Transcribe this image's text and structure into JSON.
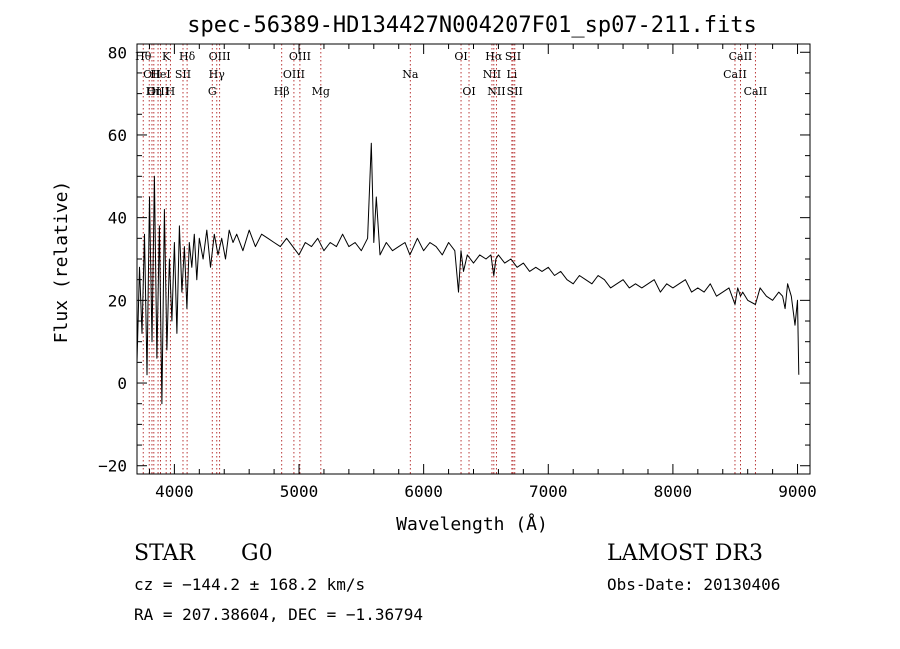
{
  "chart_data": {
    "type": "line",
    "title": "spec-56389-HD134427N004207F01_sp07-211.fits",
    "xlabel": "Wavelength (Å)",
    "ylabel": "Flux (relative)",
    "xlim": [
      3700,
      9100
    ],
    "ylim": [
      -22,
      82
    ],
    "x_ticks": [
      {
        "value": 4000,
        "label": "4000"
      },
      {
        "value": 5000,
        "label": "5000"
      },
      {
        "value": 6000,
        "label": "6000"
      },
      {
        "value": 7000,
        "label": "7000"
      },
      {
        "value": 8000,
        "label": "8000"
      },
      {
        "value": 9000,
        "label": "9000"
      }
    ],
    "x_minor_step": 200,
    "y_ticks": [
      {
        "value": -20,
        "label": "−20"
      },
      {
        "value": 0,
        "label": "0"
      },
      {
        "value": 20,
        "label": "20"
      },
      {
        "value": 40,
        "label": "40"
      },
      {
        "value": 60,
        "label": "60"
      },
      {
        "value": 80,
        "label": "80"
      }
    ],
    "y_minor_step": 5,
    "series": [
      {
        "name": "flux",
        "x": [
          3700,
          3720,
          3740,
          3760,
          3780,
          3800,
          3820,
          3840,
          3860,
          3880,
          3900,
          3920,
          3940,
          3960,
          3980,
          4000,
          4020,
          4040,
          4060,
          4080,
          4100,
          4120,
          4140,
          4160,
          4180,
          4200,
          4230,
          4260,
          4290,
          4320,
          4350,
          4380,
          4410,
          4440,
          4470,
          4500,
          4550,
          4600,
          4650,
          4700,
          4750,
          4800,
          4850,
          4900,
          4950,
          5000,
          5050,
          5100,
          5150,
          5200,
          5250,
          5300,
          5350,
          5400,
          5450,
          5500,
          5550,
          5580,
          5600,
          5620,
          5650,
          5700,
          5750,
          5800,
          5850,
          5890,
          5920,
          5950,
          6000,
          6050,
          6100,
          6150,
          6200,
          6250,
          6280,
          6300,
          6320,
          6350,
          6400,
          6450,
          6500,
          6540,
          6563,
          6580,
          6600,
          6650,
          6700,
          6750,
          6800,
          6850,
          6900,
          6950,
          7000,
          7050,
          7100,
          7150,
          7200,
          7250,
          7300,
          7350,
          7400,
          7450,
          7500,
          7550,
          7600,
          7650,
          7700,
          7750,
          7800,
          7850,
          7900,
          7950,
          8000,
          8050,
          8100,
          8150,
          8200,
          8250,
          8300,
          8350,
          8400,
          8450,
          8498,
          8520,
          8542,
          8560,
          8600,
          8662,
          8700,
          8750,
          8800,
          8850,
          8880,
          8900,
          8920,
          8950,
          8980,
          9000,
          9010
        ],
        "y": [
          5,
          28,
          12,
          36,
          2,
          45,
          10,
          50,
          6,
          38,
          -5,
          42,
          8,
          30,
          15,
          34,
          12,
          38,
          22,
          33,
          18,
          34,
          28,
          36,
          25,
          35,
          30,
          37,
          28,
          36,
          31,
          35,
          30,
          37,
          34,
          36,
          32,
          37,
          33,
          36,
          35,
          34,
          33,
          35,
          33,
          31,
          34,
          33,
          35,
          32,
          34,
          33,
          36,
          33,
          34,
          32,
          35,
          58,
          34,
          45,
          31,
          34,
          32,
          33,
          34,
          31,
          33,
          35,
          32,
          34,
          33,
          31,
          34,
          32,
          22,
          32,
          27,
          31,
          29,
          31,
          30,
          31,
          26,
          30,
          31,
          29,
          30,
          28,
          29,
          27,
          28,
          27,
          28,
          26,
          27,
          25,
          24,
          26,
          25,
          24,
          26,
          25,
          23,
          24,
          25,
          23,
          24,
          23,
          24,
          25,
          22,
          24,
          23,
          24,
          25,
          22,
          23,
          22,
          24,
          21,
          22,
          23,
          19,
          23,
          21,
          22,
          20,
          19,
          23,
          21,
          20,
          22,
          21,
          18,
          24,
          21,
          14,
          20,
          2
        ]
      }
    ],
    "lines": [
      {
        "wl": 3750,
        "label": "Hθ",
        "row": 0
      },
      {
        "wl": 3798,
        "label": "",
        "row": 0
      },
      {
        "wl": 3820,
        "label": "OII",
        "row": 1
      },
      {
        "wl": 3835,
        "label": "Hη",
        "row": 2
      },
      {
        "wl": 3869,
        "label": "OIII",
        "row": 2
      },
      {
        "wl": 3889,
        "label": "HeI",
        "row": 1
      },
      {
        "wl": 3934,
        "label": "K",
        "row": 0
      },
      {
        "wl": 3968,
        "label": "H",
        "row": 2
      },
      {
        "wl": 4069,
        "label": "SII",
        "row": 1
      },
      {
        "wl": 4102,
        "label": "Hδ",
        "row": 0
      },
      {
        "wl": 4304,
        "label": "G",
        "row": 2
      },
      {
        "wl": 4340,
        "label": "Hγ",
        "row": 1
      },
      {
        "wl": 4363,
        "label": "OIII",
        "row": 0
      },
      {
        "wl": 4861,
        "label": "Hβ",
        "row": 2
      },
      {
        "wl": 4959,
        "label": "OIII",
        "row": 1
      },
      {
        "wl": 5007,
        "label": "OIII",
        "row": 0
      },
      {
        "wl": 5175,
        "label": "Mg",
        "row": 2
      },
      {
        "wl": 5893,
        "label": "Na",
        "row": 1
      },
      {
        "wl": 6300,
        "label": "OI",
        "row": 0
      },
      {
        "wl": 6364,
        "label": "OI",
        "row": 2
      },
      {
        "wl": 6548,
        "label": "NII",
        "row": 1
      },
      {
        "wl": 6563,
        "label": "Hα",
        "row": 0
      },
      {
        "wl": 6584,
        "label": "NII",
        "row": 2
      },
      {
        "wl": 6708,
        "label": "Li",
        "row": 1
      },
      {
        "wl": 6717,
        "label": "SII",
        "row": 0
      },
      {
        "wl": 6731,
        "label": "SII",
        "row": 2
      },
      {
        "wl": 8498,
        "label": "CaII",
        "row": 1
      },
      {
        "wl": 8542,
        "label": "CaII",
        "row": 0
      },
      {
        "wl": 8662,
        "label": "CaII",
        "row": 2
      }
    ]
  },
  "info": {
    "object_class": "STAR",
    "subclass": "G0",
    "redshift": "cz = −144.2 ± 168.2 km/s",
    "coords": "RA = 207.38604, DEC =  −1.36794",
    "survey": "LAMOST DR3",
    "obs_date": "Obs-Date: 20130406"
  }
}
